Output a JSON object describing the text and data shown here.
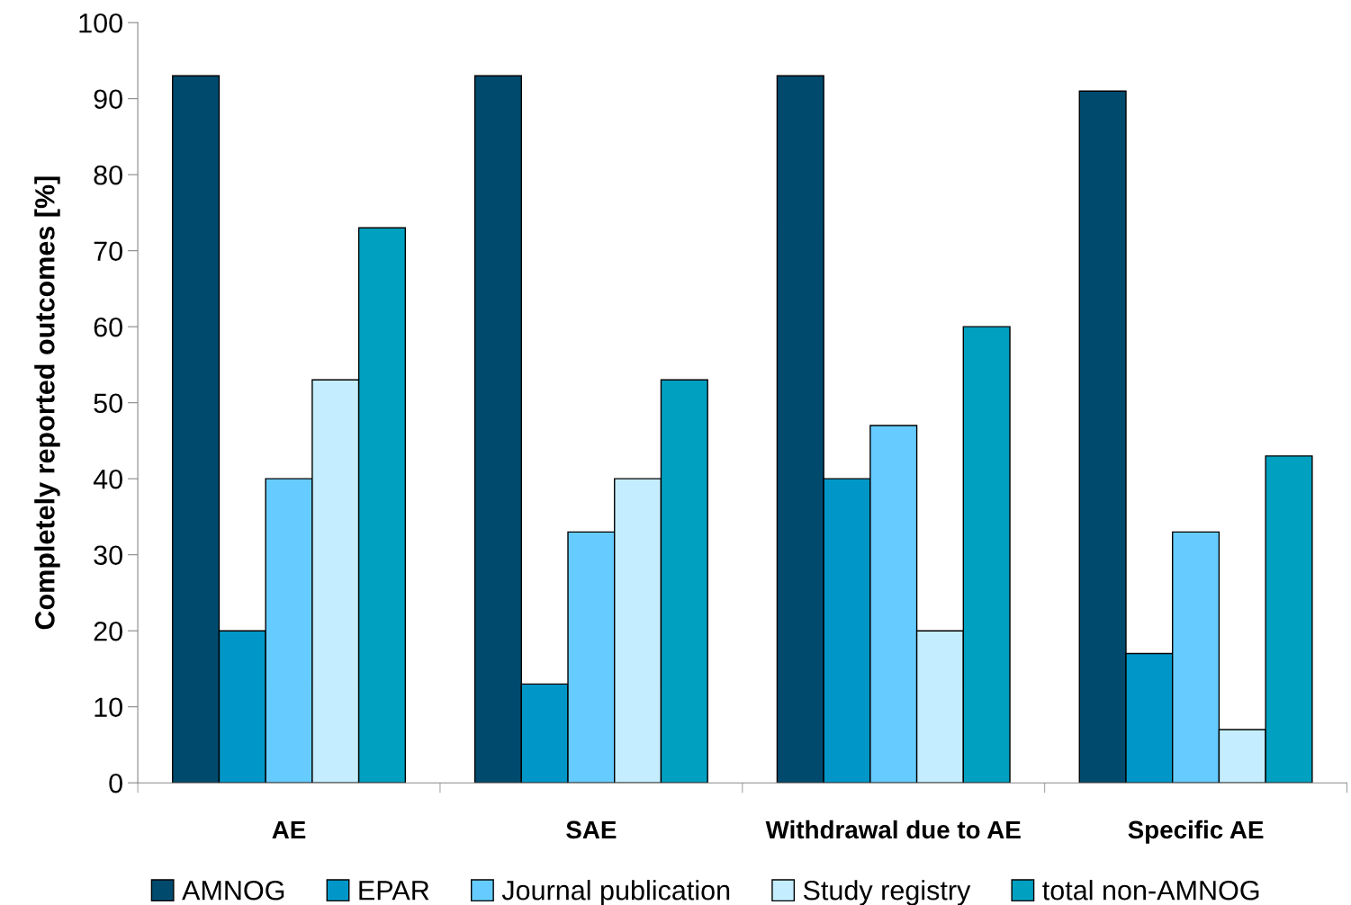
{
  "chart_data": {
    "type": "bar",
    "ylabel": "Completely reported outcomes [%]",
    "categories": [
      "AE",
      "SAE",
      "Withdrawal due to AE",
      "Specific AE"
    ],
    "series": [
      {
        "name": "AMNOG",
        "color": "#004a6e",
        "values": [
          93,
          93,
          93,
          91
        ]
      },
      {
        "name": "EPAR",
        "color": "#0097c8",
        "values": [
          20,
          13,
          40,
          17
        ]
      },
      {
        "name": "Journal publication",
        "color": "#66ccff",
        "values": [
          40,
          33,
          47,
          33
        ]
      },
      {
        "name": "Study registry",
        "color": "#c4eeff",
        "values": [
          53,
          40,
          20,
          7
        ]
      },
      {
        "name": "total non-AMNOG",
        "color": "#00a0c0",
        "values": [
          73,
          53,
          60,
          43
        ]
      }
    ],
    "ylim": [
      0,
      100
    ],
    "yticks": [
      0,
      10,
      20,
      30,
      40,
      50,
      60,
      70,
      80,
      90,
      100
    ],
    "grid": false,
    "legend": "bottom"
  }
}
